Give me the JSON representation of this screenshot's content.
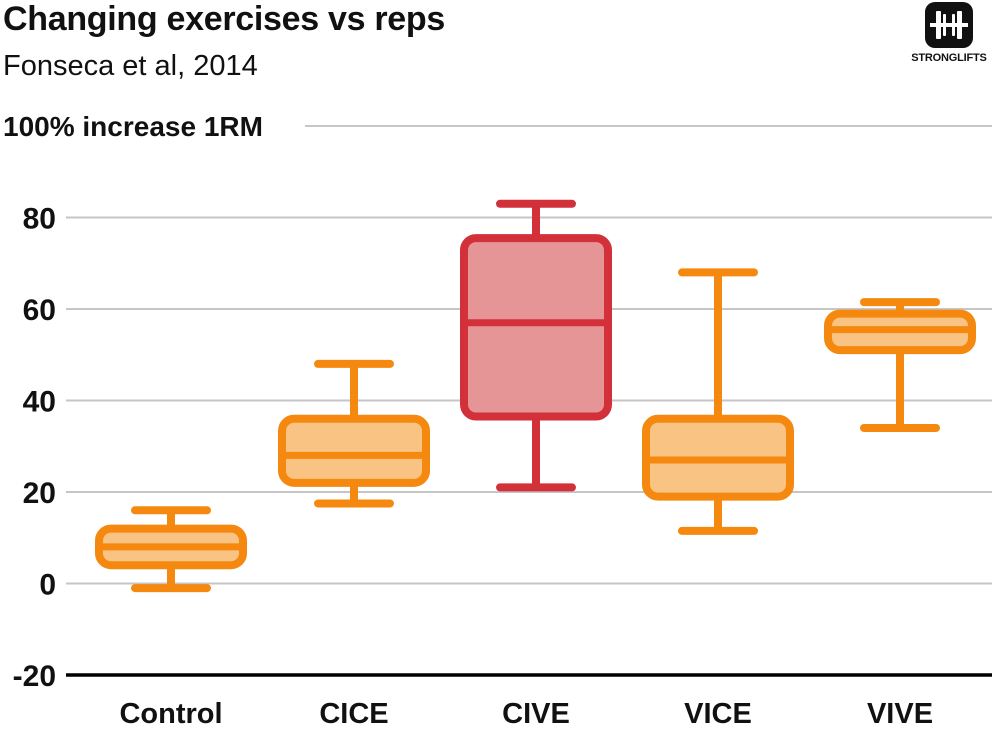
{
  "header": {
    "title": "Changing exercises vs reps",
    "subtitle": "Fonseca et al, 2014"
  },
  "brand": {
    "name": "STRONGLIFTS",
    "icon": "barbell-icon"
  },
  "colors": {
    "orange": "#f5890f",
    "orange_fill": "#f8c383",
    "red": "#d3313a",
    "red_fill": "#e69597",
    "grid": "#c6c6c6",
    "axis": "#000000",
    "text": "#111111"
  },
  "chart_data": {
    "type": "boxplot",
    "title": "Changing exercises vs reps",
    "subtitle": "Fonseca et al, 2014",
    "ylabel": "100% increase 1RM",
    "xlabel": "",
    "ylim": [
      -20,
      100
    ],
    "yticks": [
      -20,
      0,
      20,
      40,
      60,
      80
    ],
    "grid": true,
    "highlight": "CIVE",
    "categories": [
      "Control",
      "CICE",
      "CIVE",
      "VICE",
      "VIVE"
    ],
    "series": [
      {
        "name": "Control",
        "min": -1,
        "q1": 4,
        "median": 8,
        "q3": 12,
        "max": 16
      },
      {
        "name": "CICE",
        "min": 17.5,
        "q1": 22,
        "median": 28,
        "q3": 36,
        "max": 48
      },
      {
        "name": "CIVE",
        "min": 21,
        "q1": 36.5,
        "median": 57,
        "q3": 75.5,
        "max": 83
      },
      {
        "name": "VICE",
        "min": 11.5,
        "q1": 19,
        "median": 27,
        "q3": 36,
        "max": 68
      },
      {
        "name": "VIVE",
        "min": 34,
        "q1": 51,
        "median": 55.5,
        "q3": 59,
        "max": 61.5
      }
    ]
  }
}
